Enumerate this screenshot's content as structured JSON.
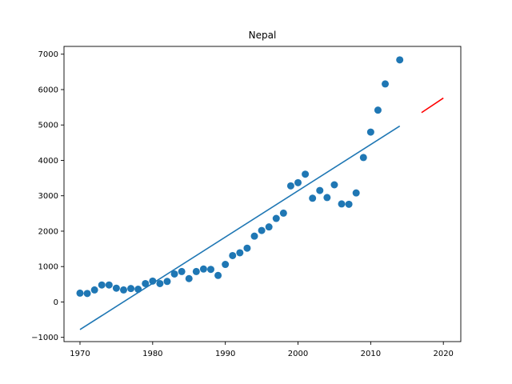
{
  "chart_data": {
    "type": "scatter",
    "title": "Nepal",
    "xlabel": "",
    "ylabel": "",
    "xlim": [
      1967.8,
      2022.4
    ],
    "ylim": [
      -1120,
      7220
    ],
    "xticks": [
      1970,
      1980,
      1990,
      2000,
      2010,
      2020
    ],
    "yticks": [
      -1000,
      0,
      1000,
      2000,
      3000,
      4000,
      5000,
      6000,
      7000
    ],
    "grid": false,
    "series": [
      {
        "kind": "scatter",
        "color": "#1f77b4",
        "x": [
          1970,
          1971,
          1972,
          1973,
          1974,
          1975,
          1976,
          1977,
          1978,
          1979,
          1980,
          1981,
          1982,
          1983,
          1984,
          1985,
          1986,
          1987,
          1988,
          1989,
          1990,
          1991,
          1992,
          1993,
          1994,
          1995,
          1996,
          1997,
          1998,
          1999,
          2000,
          2001,
          2002,
          2003,
          2004,
          2005,
          2006,
          2007,
          2008,
          2009,
          2010,
          2011,
          2012,
          2014
        ],
        "y": [
          250,
          240,
          340,
          480,
          480,
          390,
          340,
          380,
          360,
          520,
          590,
          520,
          580,
          790,
          860,
          660,
          860,
          930,
          920,
          750,
          1060,
          1310,
          1390,
          1520,
          1860,
          2020,
          2120,
          2360,
          2510,
          3280,
          3370,
          3610,
          2930,
          3150,
          2950,
          3310,
          2770,
          2760,
          3080,
          4080,
          4800,
          5420,
          6160,
          6840
        ]
      },
      {
        "kind": "line",
        "color": "#1f77b4",
        "x": [
          1970,
          2014
        ],
        "y": [
          -780,
          4970
        ]
      },
      {
        "kind": "line",
        "color": "#ff0000",
        "x": [
          2017,
          2020
        ],
        "y": [
          5350,
          5760
        ]
      }
    ]
  }
}
